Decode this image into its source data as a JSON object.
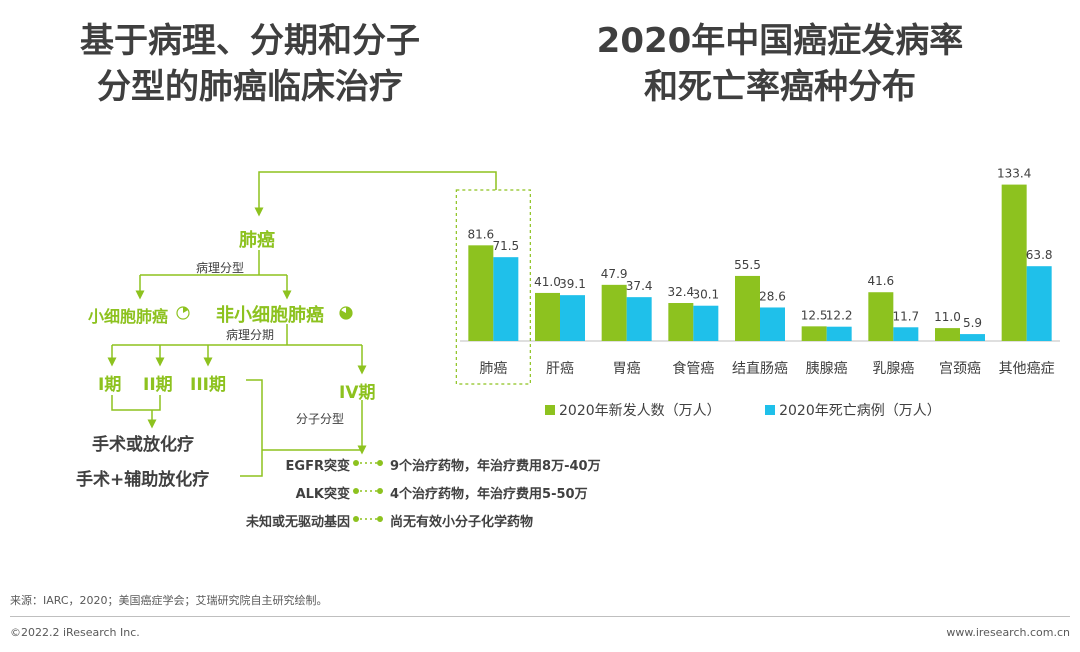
{
  "left": {
    "title_line1": "基于病理、分期和分子",
    "title_line2": "分型的肺癌临床治疗",
    "root": "肺癌",
    "path_type_label": "病理分型",
    "sclc": "小细胞肺癌",
    "nsclc": "非小细胞肺癌",
    "path_stage_label": "病理分期",
    "stages": [
      "I期",
      "II期",
      "III期",
      "IV期"
    ],
    "treatment1": "手术或放化疗",
    "treatment2": "手术+辅助放化疗",
    "mol_type_label": "分子分型",
    "mutations": [
      {
        "name": "EGFR突变",
        "drug": "9个治疗药物，年治疗费用8万-40万"
      },
      {
        "name": "ALK突变",
        "drug": "4个治疗药物，年治疗费用5-50万"
      },
      {
        "name": "未知或无驱动基因",
        "drug": "尚无有效小分子化学药物"
      }
    ]
  },
  "right": {
    "title_line1": "2020年中国癌症发病率",
    "title_line2": "和死亡率癌种分布"
  },
  "chart_data": {
    "type": "bar",
    "categories": [
      "肺癌",
      "肝癌",
      "胃癌",
      "食管癌",
      "结直肠癌",
      "胰腺癌",
      "乳腺癌",
      "宫颈癌",
      "其他癌症"
    ],
    "series": [
      {
        "name": "2020年新发人数（万人）",
        "color": "#8dc21f",
        "values": [
          81.6,
          41.0,
          47.9,
          32.4,
          55.5,
          12.5,
          41.6,
          11.0,
          133.4
        ]
      },
      {
        "name": "2020年死亡病例（万人）",
        "color": "#1fc0ea",
        "values": [
          71.5,
          39.1,
          37.4,
          30.1,
          28.6,
          12.2,
          11.7,
          5.9,
          63.8
        ]
      }
    ],
    "value_labels": [
      [
        "81.6",
        "41.0",
        "47.9",
        "32.4",
        "55.5",
        "12.5",
        "41.6",
        "11.0",
        "133.4"
      ],
      [
        "71.5",
        "39.1",
        "37.4",
        "30.1",
        "28.6",
        "12.2",
        "11.7",
        "5.9",
        "63.8"
      ]
    ],
    "ylim": [
      0,
      145
    ],
    "highlight_category": "肺癌",
    "legend_position": "bottom",
    "grid": false
  },
  "footer": {
    "source": "来源：IARC，2020；美国癌症学会；艾瑞研究院自主研究绘制。",
    "copyright": "©2022.2 iResearch Inc.",
    "website": "www.iresearch.com.cn"
  }
}
